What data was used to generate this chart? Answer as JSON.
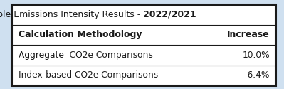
{
  "title_normal": "Example Emissions Intensity Results - ",
  "title_bold": "2022/2021",
  "header_left": "Calculation Methodology",
  "header_right": "Increase",
  "rows": [
    [
      "Aggregate  CO2e Comparisons",
      "10.0%"
    ],
    [
      "Index-based CO2e Comparisons",
      "-6.4%"
    ]
  ],
  "bg_color": "#cfe0f0",
  "table_bg": "#ffffff",
  "border_color": "#1a1a1a",
  "text_color": "#1a1a1a",
  "title_fontsize": 9.0,
  "header_fontsize": 9.0,
  "row_fontsize": 8.8
}
